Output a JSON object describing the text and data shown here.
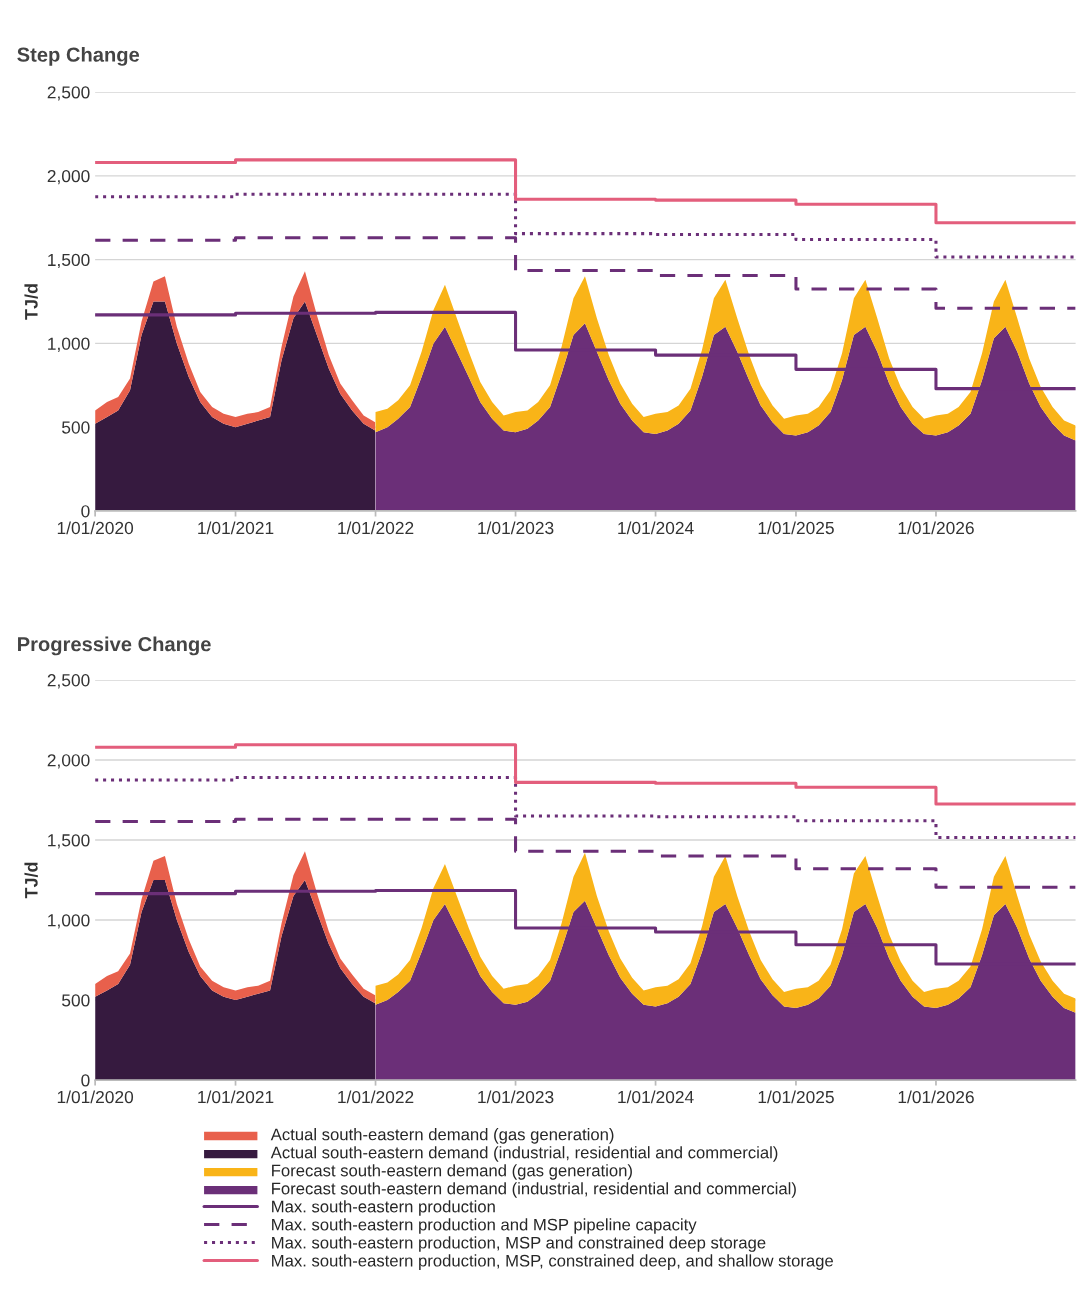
{
  "chart_data": [
    {
      "type": "area",
      "title": "Step Change",
      "ylabel": "TJ/d",
      "stacked": true,
      "grid": "y",
      "legend": "bottom",
      "xlim": [
        "2020-01-01",
        "2026-12-31"
      ],
      "xticks": [
        {
          "value": "2020-01-01",
          "label": "1/01/2020"
        },
        {
          "value": "2021-01-01",
          "label": "1/01/2021"
        },
        {
          "value": "2022-01-01",
          "label": "1/01/2022"
        },
        {
          "value": "2023-01-01",
          "label": "1/01/2023"
        },
        {
          "value": "2024-01-01",
          "label": "1/01/2024"
        },
        {
          "value": "2025-01-01",
          "label": "1/01/2025"
        },
        {
          "value": "2026-01-01",
          "label": "1/01/2026"
        }
      ],
      "ylim": [
        0,
        2500
      ],
      "yticks": [
        0,
        500,
        {
          "value": 1000,
          "label": "1,000"
        },
        {
          "value": 1500,
          "label": "1,500"
        },
        {
          "value": 2000,
          "label": "2,000"
        },
        {
          "value": 2500,
          "label": "2,500"
        }
      ],
      "x": [
        "2020-01",
        "2020-02",
        "2020-03",
        "2020-04",
        "2020-05",
        "2020-06",
        "2020-07",
        "2020-08",
        "2020-09",
        "2020-10",
        "2020-11",
        "2020-12",
        "2021-01",
        "2021-02",
        "2021-03",
        "2021-04",
        "2021-05",
        "2021-06",
        "2021-07",
        "2021-08",
        "2021-09",
        "2021-10",
        "2021-11",
        "2021-12",
        "2021-12-31",
        "2022-01",
        "2022-02",
        "2022-03",
        "2022-04",
        "2022-05",
        "2022-06",
        "2022-07",
        "2022-08",
        "2022-09",
        "2022-10",
        "2022-11",
        "2022-12",
        "2023-01",
        "2023-02",
        "2023-03",
        "2023-04",
        "2023-05",
        "2023-06",
        "2023-07",
        "2023-08",
        "2023-09",
        "2023-10",
        "2023-11",
        "2023-12",
        "2024-01",
        "2024-02",
        "2024-03",
        "2024-04",
        "2024-05",
        "2024-06",
        "2024-07",
        "2024-08",
        "2024-09",
        "2024-10",
        "2024-11",
        "2024-12",
        "2025-01",
        "2025-02",
        "2025-03",
        "2025-04",
        "2025-05",
        "2025-06",
        "2025-07",
        "2025-08",
        "2025-09",
        "2025-10",
        "2025-11",
        "2025-12",
        "2026-01",
        "2026-02",
        "2026-03",
        "2026-04",
        "2026-05",
        "2026-06",
        "2026-07",
        "2026-08",
        "2026-09",
        "2026-10",
        "2026-11",
        "2026-12",
        "2026-12-31"
      ],
      "series": [
        {
          "name": "Actual south-eastern demand (industrial, residential and commercial)",
          "color": "#361a3f",
          "values": [
            520,
            560,
            600,
            720,
            1050,
            1250,
            1250,
            1000,
            800,
            650,
            560,
            520,
            500,
            520,
            540,
            560,
            900,
            1150,
            1250,
            1050,
            850,
            700,
            600,
            520,
            480,
            null,
            null,
            null,
            null,
            null,
            null,
            null,
            null,
            null,
            null,
            null,
            null,
            null,
            null,
            null,
            null,
            null,
            null,
            null,
            null,
            null,
            null,
            null,
            null,
            null,
            null,
            null,
            null,
            null,
            null,
            null,
            null,
            null,
            null,
            null,
            null,
            null,
            null,
            null,
            null,
            null,
            null,
            null,
            null,
            null,
            null,
            null,
            null,
            null,
            null,
            null,
            null,
            null,
            null,
            null,
            null,
            null,
            null,
            null,
            null,
            null
          ]
        },
        {
          "name": "Forecast south-eastern demand (industrial, residential and commercial)",
          "color": "#6b2f78",
          "values": [
            null,
            null,
            null,
            null,
            null,
            null,
            null,
            null,
            null,
            null,
            null,
            null,
            null,
            null,
            null,
            null,
            null,
            null,
            null,
            null,
            null,
            null,
            null,
            null,
            null,
            470,
            500,
            550,
            620,
            800,
            1000,
            1100,
            950,
            800,
            650,
            550,
            480,
            470,
            490,
            540,
            620,
            820,
            1050,
            1120,
            950,
            780,
            640,
            540,
            470,
            460,
            480,
            520,
            600,
            800,
            1050,
            1100,
            950,
            780,
            630,
            530,
            460,
            450,
            470,
            510,
            590,
            780,
            1050,
            1100,
            950,
            760,
            620,
            520,
            460,
            450,
            470,
            510,
            580,
            780,
            1030,
            1100,
            950,
            760,
            620,
            520,
            450,
            420
          ]
        },
        {
          "name": "Actual south-eastern demand (gas generation)",
          "color": "#e8604c",
          "values": [
            80,
            90,
            80,
            70,
            80,
            120,
            150,
            100,
            80,
            60,
            60,
            60,
            60,
            60,
            50,
            60,
            80,
            130,
            180,
            120,
            80,
            60,
            60,
            50,
            50,
            null,
            null,
            null,
            null,
            null,
            null,
            null,
            null,
            null,
            null,
            null,
            null,
            null,
            null,
            null,
            null,
            null,
            null,
            null,
            null,
            null,
            null,
            null,
            null,
            null,
            null,
            null,
            null,
            null,
            null,
            null,
            null,
            null,
            null,
            null,
            null,
            null,
            null,
            null,
            null,
            null,
            null,
            null,
            null,
            null,
            null,
            null,
            null,
            null,
            null,
            null,
            null,
            null,
            null,
            null,
            null,
            null,
            null,
            null,
            null,
            null
          ]
        },
        {
          "name": "Forecast south-eastern demand (gas generation)",
          "color": "#f9b418",
          "values": [
            null,
            null,
            null,
            null,
            null,
            null,
            null,
            null,
            null,
            null,
            null,
            null,
            null,
            null,
            null,
            null,
            null,
            null,
            null,
            null,
            null,
            null,
            null,
            null,
            null,
            120,
            110,
            110,
            130,
            150,
            200,
            250,
            200,
            150,
            120,
            100,
            90,
            120,
            110,
            110,
            130,
            160,
            220,
            280,
            200,
            150,
            120,
            100,
            90,
            120,
            110,
            110,
            130,
            160,
            220,
            280,
            200,
            150,
            120,
            100,
            90,
            120,
            110,
            110,
            130,
            160,
            220,
            280,
            200,
            150,
            120,
            100,
            90,
            120,
            110,
            110,
            130,
            160,
            220,
            280,
            200,
            150,
            120,
            100,
            90,
            90
          ]
        },
        {
          "name": "Max. south-eastern production",
          "type": "step",
          "line_style": "solid",
          "color": "#6b2f78",
          "x": [
            "2020-01-01",
            "2021-01-01",
            "2022-01-01",
            "2023-01-01",
            "2024-01-01",
            "2025-01-01",
            "2026-01-01",
            "2026-12-31"
          ],
          "values": [
            1170,
            1180,
            1185,
            960,
            930,
            845,
            730,
            730
          ]
        },
        {
          "name": "Max. south-eastern production and MSP pipeline capacity",
          "type": "step",
          "line_style": "dashed",
          "color": "#6b2f78",
          "x": [
            "2020-01-01",
            "2021-01-01",
            "2022-01-01",
            "2023-01-01",
            "2024-01-01",
            "2025-01-01",
            "2026-01-01",
            "2026-12-31"
          ],
          "values": [
            1615,
            1630,
            1630,
            1435,
            1405,
            1325,
            1210,
            1210
          ]
        },
        {
          "name": "Max. south-eastern production, MSP and constrained deep storage",
          "type": "step",
          "line_style": "dotted",
          "color": "#6b2f78",
          "x": [
            "2020-01-01",
            "2021-01-01",
            "2022-01-01",
            "2023-01-01",
            "2024-01-01",
            "2025-01-01",
            "2026-01-01",
            "2026-12-31"
          ],
          "values": [
            1875,
            1890,
            1890,
            1655,
            1650,
            1620,
            1515,
            1515
          ]
        },
        {
          "name": "Max. south-eastern production, MSP, constrained deep, and shallow storage",
          "type": "step",
          "line_style": "solid",
          "color": "#e35e7c",
          "x": [
            "2020-01-01",
            "2021-01-01",
            "2022-01-01",
            "2023-01-01",
            "2024-01-01",
            "2025-01-01",
            "2026-01-01",
            "2026-12-31"
          ],
          "values": [
            2080,
            2095,
            2095,
            1860,
            1855,
            1830,
            1720,
            1720
          ]
        }
      ]
    },
    {
      "type": "area",
      "title": "Progressive Change",
      "ylabel": "TJ/d",
      "stacked": true,
      "grid": "y",
      "xlim": [
        "2020-01-01",
        "2026-12-31"
      ],
      "xticks": [
        {
          "value": "2020-01-01",
          "label": "1/01/2020"
        },
        {
          "value": "2021-01-01",
          "label": "1/01/2021"
        },
        {
          "value": "2022-01-01",
          "label": "1/01/2022"
        },
        {
          "value": "2023-01-01",
          "label": "1/01/2023"
        },
        {
          "value": "2024-01-01",
          "label": "1/01/2024"
        },
        {
          "value": "2025-01-01",
          "label": "1/01/2025"
        },
        {
          "value": "2026-01-01",
          "label": "1/01/2026"
        }
      ],
      "ylim": [
        0,
        2500
      ],
      "yticks": [
        0,
        500,
        {
          "value": 1000,
          "label": "1,000"
        },
        {
          "value": 1500,
          "label": "1,500"
        },
        {
          "value": 2000,
          "label": "2,000"
        },
        {
          "value": 2500,
          "label": "2,500"
        }
      ],
      "x": [
        "2020-01",
        "2020-02",
        "2020-03",
        "2020-04",
        "2020-05",
        "2020-06",
        "2020-07",
        "2020-08",
        "2020-09",
        "2020-10",
        "2020-11",
        "2020-12",
        "2021-01",
        "2021-02",
        "2021-03",
        "2021-04",
        "2021-05",
        "2021-06",
        "2021-07",
        "2021-08",
        "2021-09",
        "2021-10",
        "2021-11",
        "2021-12",
        "2021-12-31",
        "2022-01",
        "2022-02",
        "2022-03",
        "2022-04",
        "2022-05",
        "2022-06",
        "2022-07",
        "2022-08",
        "2022-09",
        "2022-10",
        "2022-11",
        "2022-12",
        "2023-01",
        "2023-02",
        "2023-03",
        "2023-04",
        "2023-05",
        "2023-06",
        "2023-07",
        "2023-08",
        "2023-09",
        "2023-10",
        "2023-11",
        "2023-12",
        "2024-01",
        "2024-02",
        "2024-03",
        "2024-04",
        "2024-05",
        "2024-06",
        "2024-07",
        "2024-08",
        "2024-09",
        "2024-10",
        "2024-11",
        "2024-12",
        "2025-01",
        "2025-02",
        "2025-03",
        "2025-04",
        "2025-05",
        "2025-06",
        "2025-07",
        "2025-08",
        "2025-09",
        "2025-10",
        "2025-11",
        "2025-12",
        "2026-01",
        "2026-02",
        "2026-03",
        "2026-04",
        "2026-05",
        "2026-06",
        "2026-07",
        "2026-08",
        "2026-09",
        "2026-10",
        "2026-11",
        "2026-12",
        "2026-12-31"
      ],
      "series": [
        {
          "color": "#361a3f",
          "values": [
            520,
            560,
            600,
            720,
            1050,
            1250,
            1250,
            1000,
            800,
            650,
            560,
            520,
            500,
            520,
            540,
            560,
            900,
            1150,
            1250,
            1050,
            850,
            700,
            600,
            520,
            480,
            null,
            null,
            null,
            null,
            null,
            null,
            null,
            null,
            null,
            null,
            null,
            null,
            null,
            null,
            null,
            null,
            null,
            null,
            null,
            null,
            null,
            null,
            null,
            null,
            null,
            null,
            null,
            null,
            null,
            null,
            null,
            null,
            null,
            null,
            null,
            null,
            null,
            null,
            null,
            null,
            null,
            null,
            null,
            null,
            null,
            null,
            null,
            null,
            null,
            null,
            null,
            null,
            null,
            null,
            null,
            null,
            null,
            null,
            null,
            null,
            null
          ]
        },
        {
          "color": "#6b2f78",
          "values": [
            null,
            null,
            null,
            null,
            null,
            null,
            null,
            null,
            null,
            null,
            null,
            null,
            null,
            null,
            null,
            null,
            null,
            null,
            null,
            null,
            null,
            null,
            null,
            null,
            null,
            470,
            500,
            550,
            620,
            800,
            1000,
            1100,
            950,
            800,
            650,
            550,
            480,
            470,
            490,
            540,
            620,
            820,
            1050,
            1120,
            950,
            780,
            640,
            540,
            470,
            460,
            480,
            520,
            600,
            800,
            1050,
            1100,
            950,
            780,
            630,
            530,
            460,
            450,
            470,
            510,
            590,
            780,
            1050,
            1100,
            950,
            760,
            620,
            520,
            460,
            450,
            470,
            510,
            580,
            780,
            1030,
            1100,
            950,
            760,
            620,
            520,
            450,
            420
          ]
        },
        {
          "color": "#e8604c",
          "values": [
            80,
            90,
            80,
            70,
            80,
            120,
            150,
            100,
            80,
            60,
            60,
            60,
            60,
            60,
            50,
            60,
            80,
            130,
            180,
            120,
            80,
            60,
            60,
            50,
            50,
            null,
            null,
            null,
            null,
            null,
            null,
            null,
            null,
            null,
            null,
            null,
            null,
            null,
            null,
            null,
            null,
            null,
            null,
            null,
            null,
            null,
            null,
            null,
            null,
            null,
            null,
            null,
            null,
            null,
            null,
            null,
            null,
            null,
            null,
            null,
            null,
            null,
            null,
            null,
            null,
            null,
            null,
            null,
            null,
            null,
            null,
            null,
            null,
            null,
            null,
            null,
            null,
            null,
            null,
            null,
            null,
            null,
            null,
            null,
            null,
            null
          ]
        },
        {
          "color": "#f9b418",
          "values": [
            null,
            null,
            null,
            null,
            null,
            null,
            null,
            null,
            null,
            null,
            null,
            null,
            null,
            null,
            null,
            null,
            null,
            null,
            null,
            null,
            null,
            null,
            null,
            null,
            null,
            120,
            110,
            110,
            130,
            150,
            200,
            250,
            200,
            150,
            120,
            100,
            90,
            120,
            110,
            110,
            130,
            160,
            220,
            300,
            200,
            150,
            120,
            100,
            90,
            120,
            110,
            110,
            130,
            160,
            220,
            300,
            200,
            150,
            120,
            100,
            90,
            120,
            110,
            110,
            130,
            160,
            240,
            300,
            200,
            150,
            120,
            100,
            90,
            120,
            110,
            110,
            130,
            160,
            240,
            300,
            200,
            150,
            120,
            100,
            90,
            90
          ]
        },
        {
          "type": "step",
          "line_style": "solid",
          "color": "#6b2f78",
          "x": [
            "2020-01-01",
            "2021-01-01",
            "2022-01-01",
            "2023-01-01",
            "2024-01-01",
            "2025-01-01",
            "2026-01-01",
            "2026-12-31"
          ],
          "values": [
            1165,
            1180,
            1185,
            950,
            925,
            845,
            725,
            725
          ]
        },
        {
          "type": "step",
          "line_style": "dashed",
          "color": "#6b2f78",
          "x": [
            "2020-01-01",
            "2021-01-01",
            "2022-01-01",
            "2023-01-01",
            "2024-01-01",
            "2025-01-01",
            "2026-01-01",
            "2026-12-31"
          ],
          "values": [
            1615,
            1630,
            1630,
            1430,
            1400,
            1320,
            1205,
            1205
          ]
        },
        {
          "type": "step",
          "line_style": "dotted",
          "color": "#6b2f78",
          "x": [
            "2020-01-01",
            "2021-01-01",
            "2022-01-01",
            "2023-01-01",
            "2024-01-01",
            "2025-01-01",
            "2026-01-01",
            "2026-12-31"
          ],
          "values": [
            1875,
            1890,
            1890,
            1650,
            1645,
            1620,
            1515,
            1515
          ]
        },
        {
          "type": "step",
          "line_style": "solid",
          "color": "#e35e7c",
          "x": [
            "2020-01-01",
            "2021-01-01",
            "2022-01-01",
            "2023-01-01",
            "2024-01-01",
            "2025-01-01",
            "2026-01-01",
            "2026-12-31"
          ],
          "values": [
            2080,
            2095,
            2095,
            1860,
            1855,
            1830,
            1725,
            1725
          ]
        }
      ]
    }
  ]
}
